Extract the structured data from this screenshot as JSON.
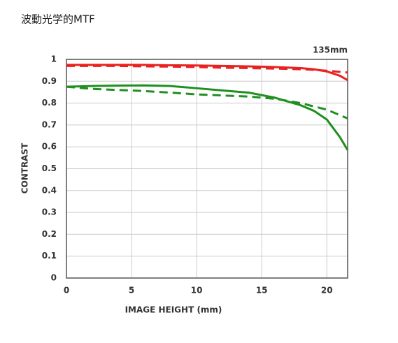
{
  "chart_data": {
    "type": "line",
    "title": "波動光学的MTF",
    "annotation": "135mm",
    "xlabel": "IMAGE HEIGHT (mm)",
    "ylabel": "CONTRAST",
    "x": [
      0,
      2,
      4,
      6,
      8,
      10,
      12,
      14,
      16,
      18,
      19,
      20,
      21,
      21.6
    ],
    "series": [
      {
        "color": "#e8221f",
        "dashed": false,
        "values": [
          0.975,
          0.975,
          0.975,
          0.975,
          0.973,
          0.972,
          0.97,
          0.968,
          0.965,
          0.96,
          0.955,
          0.945,
          0.925,
          0.905
        ]
      },
      {
        "color": "#e8221f",
        "dashed": true,
        "values": [
          0.97,
          0.97,
          0.97,
          0.968,
          0.967,
          0.965,
          0.962,
          0.96,
          0.958,
          0.955,
          0.952,
          0.948,
          0.943,
          0.94
        ]
      },
      {
        "color": "#1f8f1f",
        "dashed": false,
        "values": [
          0.875,
          0.878,
          0.88,
          0.881,
          0.878,
          0.868,
          0.858,
          0.848,
          0.825,
          0.79,
          0.765,
          0.725,
          0.645,
          0.585
        ]
      },
      {
        "color": "#1f8f1f",
        "dashed": true,
        "values": [
          0.875,
          0.865,
          0.86,
          0.855,
          0.848,
          0.84,
          0.835,
          0.83,
          0.82,
          0.8,
          0.785,
          0.77,
          0.745,
          0.73
        ]
      }
    ],
    "xlim": [
      0,
      21.6
    ],
    "xticks": [
      0,
      5,
      10,
      15,
      20
    ],
    "ylim": [
      0,
      1
    ],
    "yticks": [
      0,
      0.1,
      0.2,
      0.3,
      0.4,
      0.5,
      0.6,
      0.7,
      0.8,
      0.9,
      1
    ],
    "grid": true
  }
}
